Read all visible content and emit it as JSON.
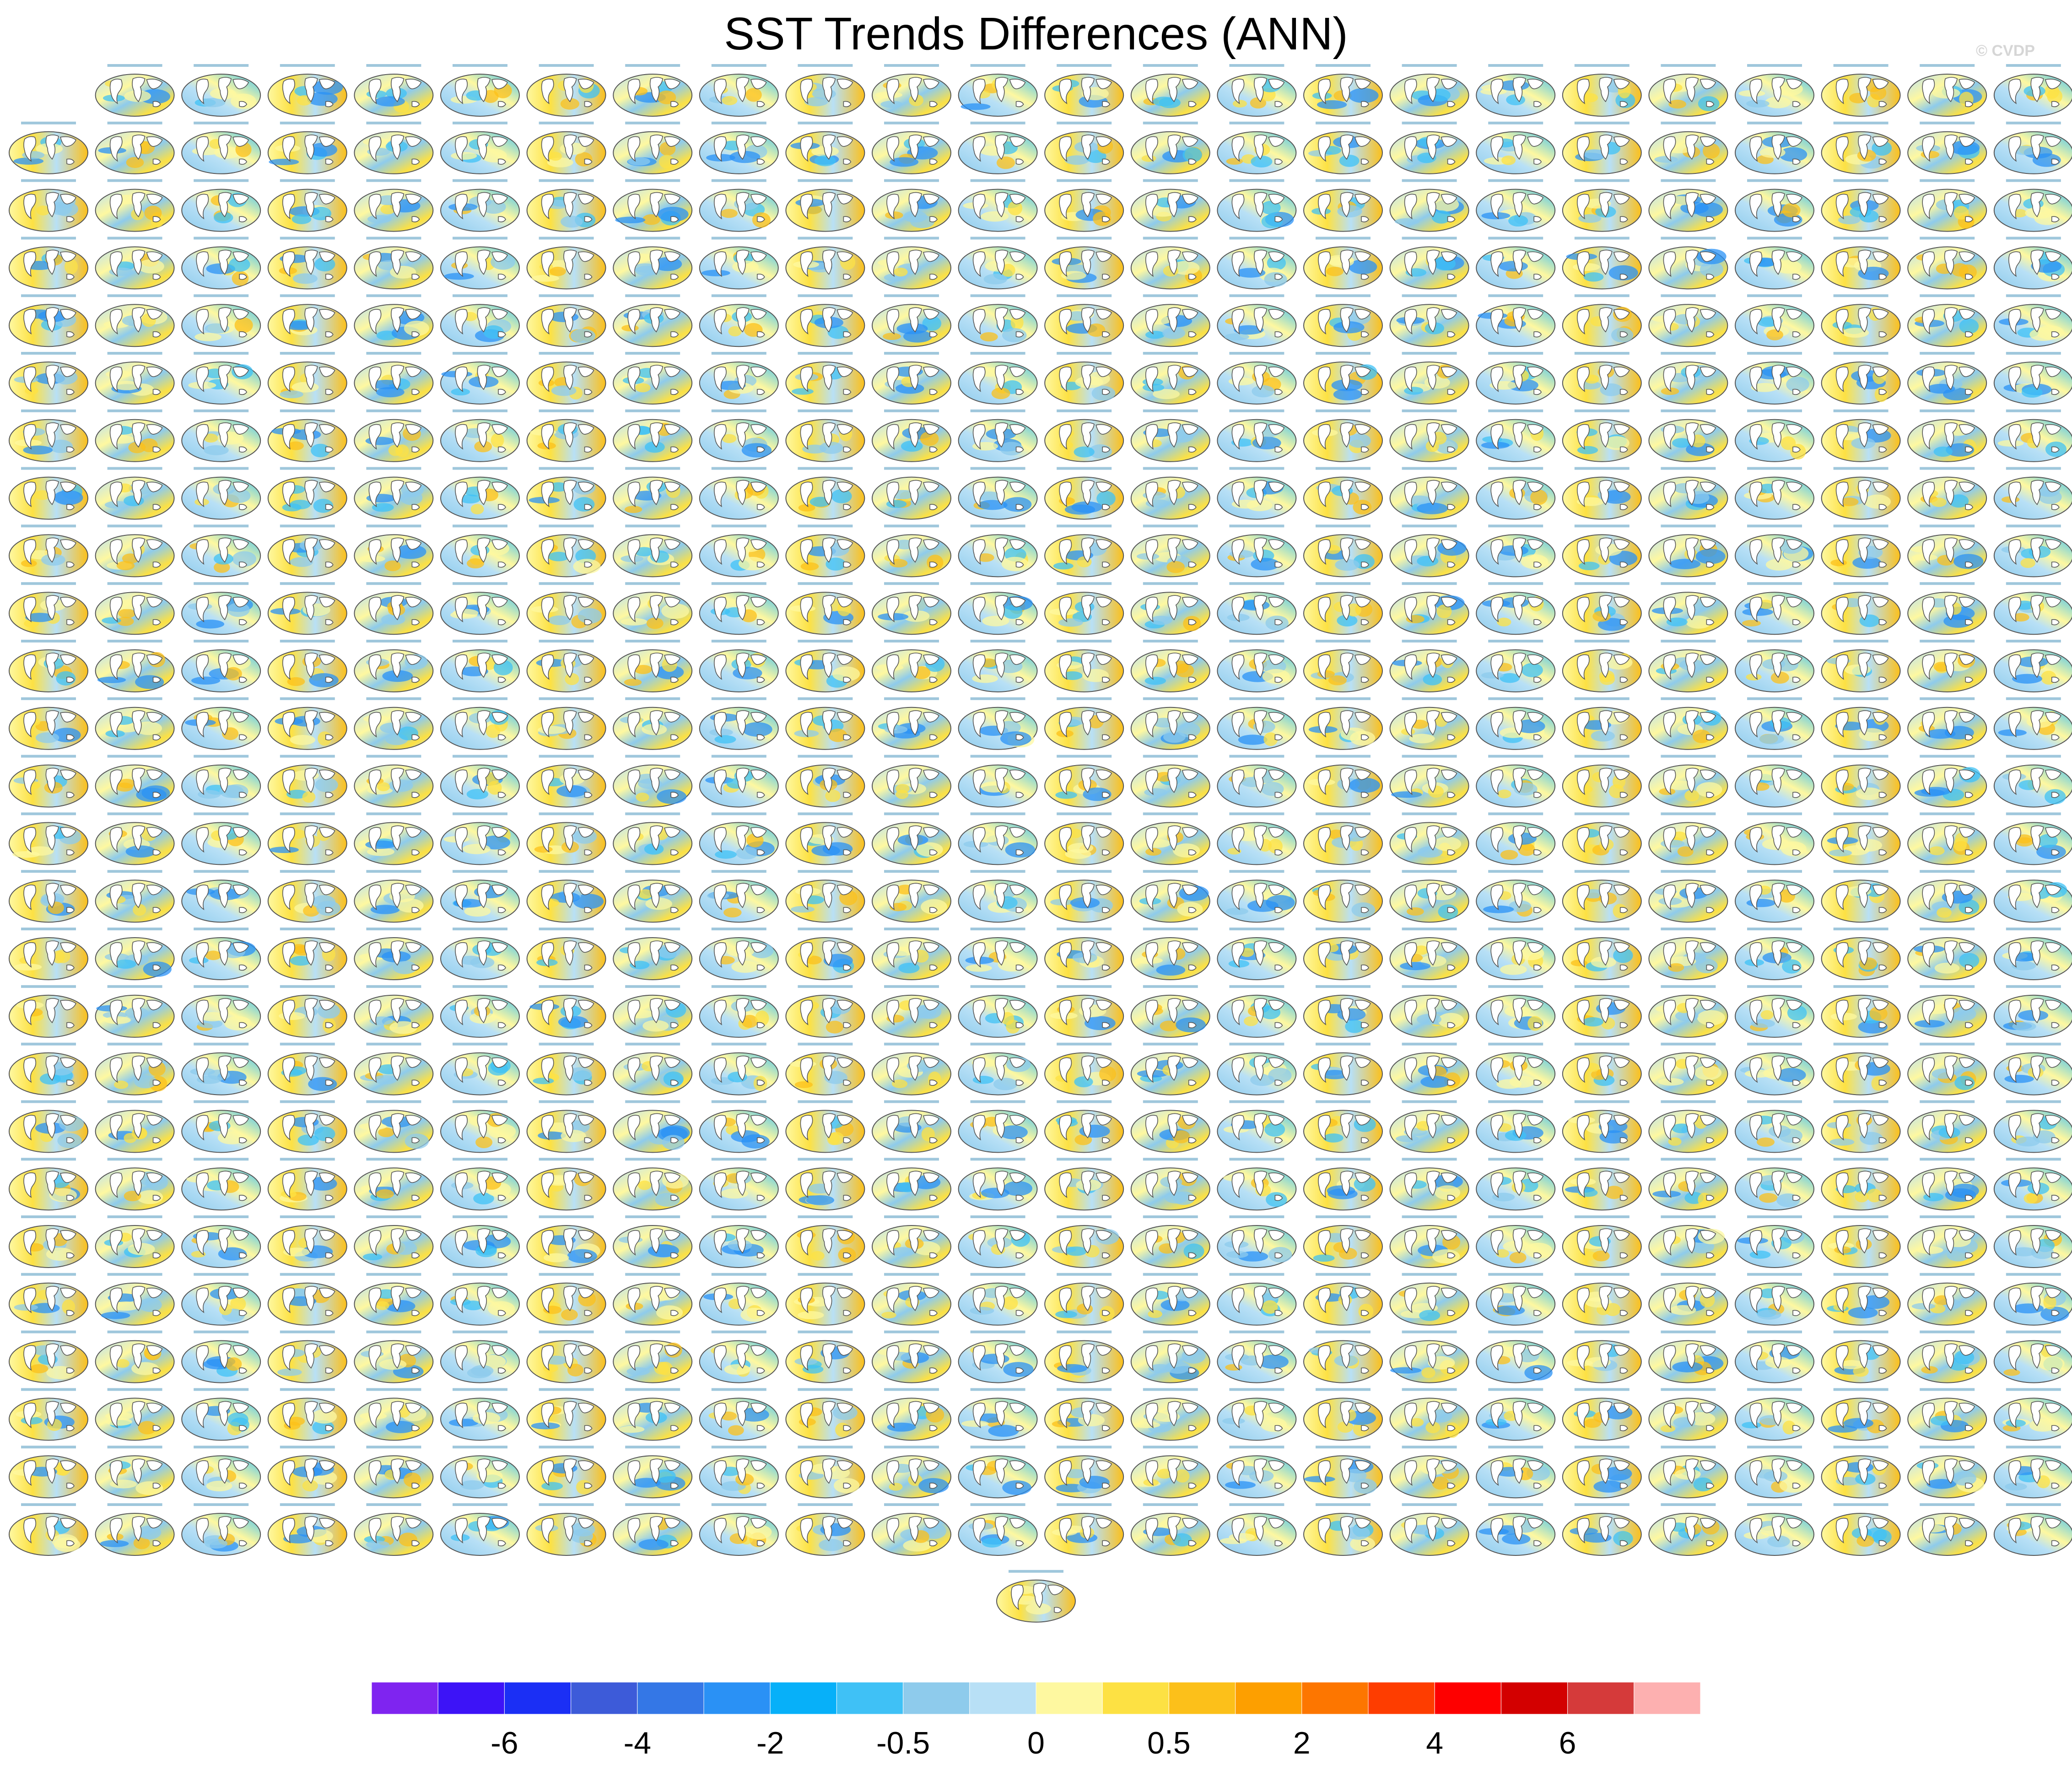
{
  "title": "SST Trends Differences (ANN)",
  "watermark": "© CVDP",
  "chart_data": {
    "type": "heatmap",
    "title": "SST Trends Differences (ANN)",
    "layout": "small-multiples",
    "rows": 26,
    "columns": 24,
    "first_row_columns": 23,
    "extra_bottom_panels": 1,
    "panel_type": "global map, SST trend difference",
    "colorbar": {
      "orientation": "horizontal",
      "placement": "bottom",
      "colors": [
        "#7f24f0",
        "#3d13f7",
        "#1b2ff5",
        "#3d5bd9",
        "#3477e6",
        "#2a91f5",
        "#07b0f9",
        "#3fc1f6",
        "#8ecbec",
        "#b8e0f6",
        "#fef8a0",
        "#fde143",
        "#fcc01a",
        "#fd9f00",
        "#fd7600",
        "#fe3d00",
        "#fe0000",
        "#d30000",
        "#d53a3a",
        "#fdb0b0"
      ],
      "tick_labels": [
        "-6",
        "-4",
        "-2",
        "-0.5",
        "0",
        "0.5",
        "2",
        "4",
        "6"
      ],
      "tick_boundary_index": [
        2,
        4,
        6,
        8,
        10,
        12,
        14,
        16,
        18
      ]
    }
  }
}
